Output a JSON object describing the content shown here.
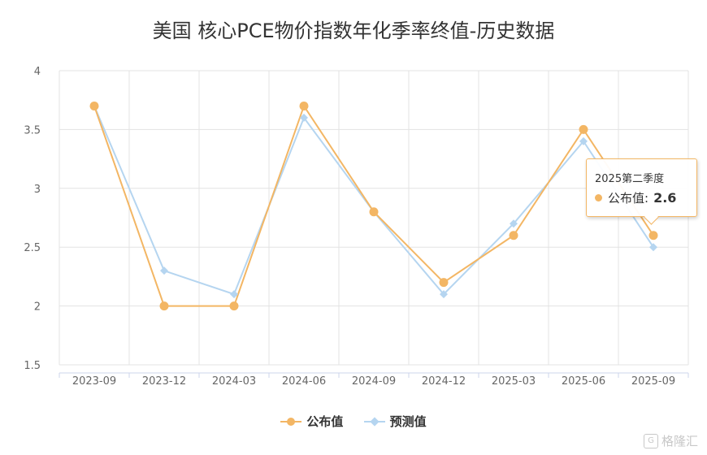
{
  "chart_data": {
    "type": "line",
    "title": "美国 核心PCE物价指数年化季率终值-历史数据",
    "categories": [
      "2023-09",
      "2023-12",
      "2024-03",
      "2024-06",
      "2024-09",
      "2024-12",
      "2025-03",
      "2025-06",
      "2025-09"
    ],
    "ylim": [
      1.5,
      4
    ],
    "yticks": [
      "1.5",
      "2",
      "2.5",
      "3",
      "3.5",
      "4"
    ],
    "grid": true,
    "legend_position": "bottom",
    "series": [
      {
        "name": "公布值",
        "color": "#f3b664",
        "marker": "circle",
        "values": [
          3.7,
          2.0,
          2.0,
          3.7,
          2.8,
          2.2,
          2.6,
          3.5,
          2.6
        ]
      },
      {
        "name": "预测值",
        "color": "#b5d5f0",
        "marker": "diamond",
        "values": [
          3.7,
          2.3,
          2.1,
          3.6,
          2.8,
          2.1,
          2.7,
          3.4,
          2.5
        ]
      }
    ]
  },
  "tooltip": {
    "period": "2025第二季度",
    "label": "公布值:",
    "value": "2.6",
    "color": "#f3b664"
  },
  "watermark": {
    "text": "格隆汇",
    "icon": "gelonghui-logo-icon"
  }
}
